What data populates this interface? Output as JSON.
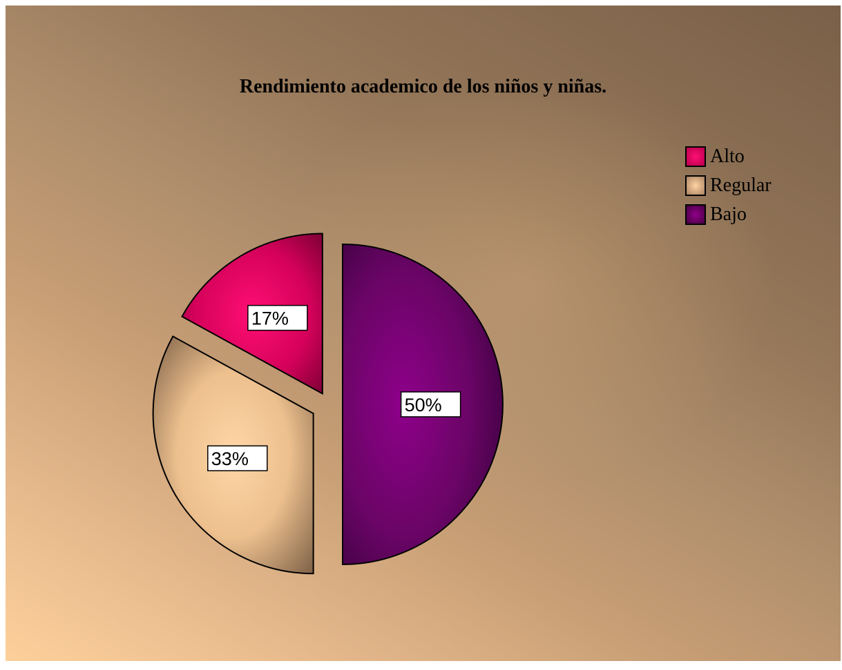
{
  "chart_data": {
    "type": "pie",
    "title": "Rendimiento academico de los niños y niñas.",
    "categories": [
      "Alto",
      "Regular",
      "Bajo"
    ],
    "values": [
      17,
      33,
      50
    ],
    "value_labels": [
      "17%",
      "33%",
      "50%"
    ],
    "colors": [
      "#e8065f",
      "#f2c896",
      "#6c0568"
    ],
    "legend_placement": "top-right",
    "exploded": true
  }
}
